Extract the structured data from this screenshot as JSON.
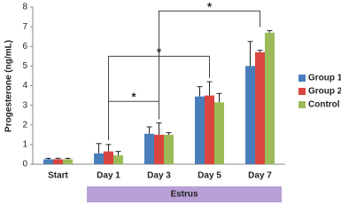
{
  "chart_data": {
    "type": "bar",
    "ylabel": "Progesterone (ng/mL)",
    "categories": [
      "Start",
      "Day 1",
      "Day 3",
      "Day 5",
      "Day 7"
    ],
    "series": [
      {
        "name": "Group 1",
        "color": "#4a7ebb",
        "values": [
          0.25,
          0.55,
          1.55,
          3.45,
          5.0
        ],
        "errors": [
          0.05,
          0.5,
          0.35,
          0.5,
          1.25
        ]
      },
      {
        "name": "Group 2",
        "color": "#d9463f",
        "values": [
          0.25,
          0.65,
          1.5,
          3.5,
          5.7
        ],
        "errors": [
          0.05,
          0.35,
          0.6,
          0.7,
          0.1
        ]
      },
      {
        "name": "Control",
        "color": "#9bbb59",
        "values": [
          0.25,
          0.45,
          1.5,
          3.15,
          6.7
        ],
        "errors": [
          0.05,
          0.2,
          0.1,
          0.45,
          0.1
        ]
      }
    ],
    "ylim": [
      0,
      8
    ],
    "yticks": [
      0,
      1,
      2,
      3,
      4,
      5,
      6,
      7,
      8
    ],
    "grid": false,
    "legend": "right",
    "annotations": [
      {
        "text": "*",
        "y": 3.2,
        "x": [
          1,
          2
        ]
      },
      {
        "text": "*",
        "y": 5.5,
        "x": [
          1,
          3
        ]
      },
      {
        "text": "*",
        "y": 7.8,
        "x": [
          2,
          4
        ]
      }
    ],
    "span": {
      "label": "Estrus",
      "x": [
        1,
        4
      ],
      "color": "#b9a0d6"
    }
  }
}
